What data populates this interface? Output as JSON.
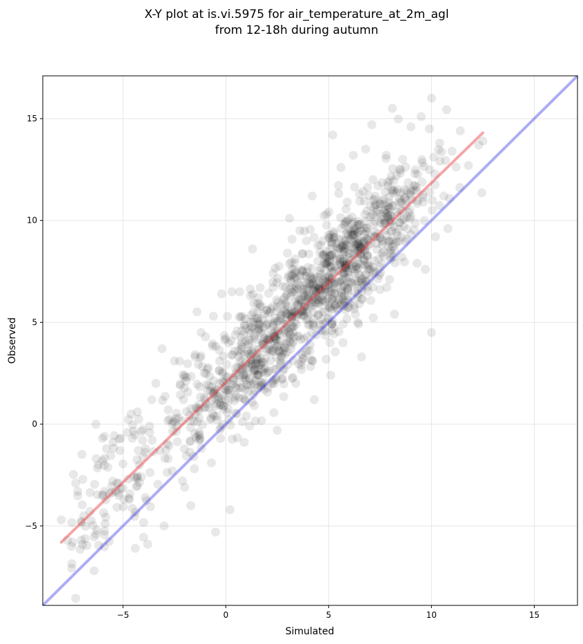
{
  "chart_data": {
    "type": "scatter",
    "title": "X-Y plot at is.vi.5975 for air_temperature_at_2m_agl",
    "subtitle": "from 12-18h during autumn",
    "xlabel": "Simulated",
    "ylabel": "Observed",
    "xlim": [
      -8.9,
      17.1
    ],
    "ylim": [
      -8.9,
      17.1
    ],
    "xticks": [
      -5,
      0,
      5,
      10,
      15
    ],
    "yticks": [
      -5,
      0,
      5,
      10,
      15
    ],
    "xtick_labels": [
      "−5",
      "0",
      "5",
      "10",
      "15"
    ],
    "ytick_labels": [
      "−5",
      "0",
      "5",
      "10",
      "15"
    ],
    "grid": true,
    "colors": {
      "points": "#000000",
      "fit_line": "#e8383b",
      "identity_line": "#3a3ae8"
    },
    "series": [
      {
        "kind": "points",
        "point_count_estimate": 1400,
        "representative_points": [
          [
            -8.0,
            -4.7
          ],
          [
            -7.7,
            -5.7
          ],
          [
            -7.5,
            -6.0
          ],
          [
            -7.3,
            -2.9
          ],
          [
            -7.2,
            -3.3
          ],
          [
            -6.9,
            -4.5
          ],
          [
            -6.3,
            -1.7
          ],
          [
            -6.2,
            -2.0
          ],
          [
            -6.0,
            -3.5
          ],
          [
            -5.9,
            -3.3
          ],
          [
            -5.8,
            -1.2
          ],
          [
            -5.9,
            -0.6
          ],
          [
            -5.5,
            -2.8
          ],
          [
            -5.3,
            -2.9
          ],
          [
            -5.1,
            -0.7
          ],
          [
            -4.7,
            -3.7
          ],
          [
            -4.6,
            0.5
          ],
          [
            -4.4,
            -6.1
          ],
          [
            -4.3,
            0.6
          ],
          [
            -4.2,
            -2.0
          ],
          [
            -3.9,
            -1.2
          ],
          [
            -3.8,
            -5.9
          ],
          [
            -3.7,
            -0.1
          ],
          [
            -3.6,
            1.2
          ],
          [
            -3.4,
            2.0
          ],
          [
            -3.2,
            -1.3
          ],
          [
            -3.1,
            3.7
          ],
          [
            -3.0,
            -5.0
          ],
          [
            -2.8,
            0.7
          ],
          [
            -2.6,
            -2.3
          ],
          [
            -2.5,
            3.1
          ],
          [
            -2.3,
            0.3
          ],
          [
            -2.2,
            1.9
          ],
          [
            -2.0,
            -3.1
          ],
          [
            -1.9,
            2.3
          ],
          [
            -1.7,
            -4.0
          ],
          [
            -1.5,
            3.3
          ],
          [
            -1.3,
            -0.8
          ],
          [
            -1.2,
            4.5
          ],
          [
            -1.0,
            1.2
          ],
          [
            -0.9,
            2.7
          ],
          [
            -0.7,
            -1.9
          ],
          [
            -0.6,
            5.3
          ],
          [
            -0.5,
            -5.3
          ],
          [
            -0.3,
            3.1
          ],
          [
            -0.2,
            6.4
          ],
          [
            -0.1,
            0.9
          ],
          [
            0.0,
            4.2
          ],
          [
            0.1,
            2.3
          ],
          [
            0.2,
            -4.2
          ],
          [
            0.3,
            6.5
          ],
          [
            0.5,
            1.4
          ],
          [
            0.6,
            3.6
          ],
          [
            0.8,
            5.3
          ],
          [
            1.0,
            0.4
          ],
          [
            1.1,
            2.8
          ],
          [
            1.2,
            6.3
          ],
          [
            1.3,
            8.6
          ],
          [
            1.5,
            3.3
          ],
          [
            1.6,
            4.7
          ],
          [
            1.7,
            1.9
          ],
          [
            1.8,
            3.9
          ],
          [
            2.0,
            5.6
          ],
          [
            2.1,
            2.6
          ],
          [
            2.3,
            7.4
          ],
          [
            2.4,
            4.2
          ],
          [
            2.5,
            -0.3
          ],
          [
            2.7,
            3.0
          ],
          [
            2.8,
            6.1
          ],
          [
            3.0,
            8.4
          ],
          [
            3.1,
            10.1
          ],
          [
            3.2,
            4.8
          ],
          [
            3.4,
            2.0
          ],
          [
            3.5,
            6.9
          ],
          [
            3.6,
            9.5
          ],
          [
            3.8,
            5.3
          ],
          [
            4.0,
            7.7
          ],
          [
            4.1,
            3.9
          ],
          [
            4.2,
            11.2
          ],
          [
            4.3,
            1.2
          ],
          [
            4.5,
            6.1
          ],
          [
            4.6,
            8.8
          ],
          [
            4.7,
            4.6
          ],
          [
            4.9,
            10.3
          ],
          [
            5.0,
            7.2
          ],
          [
            5.1,
            2.4
          ],
          [
            5.2,
            14.2
          ],
          [
            5.3,
            5.8
          ],
          [
            5.5,
            9.1
          ],
          [
            5.6,
            12.6
          ],
          [
            5.7,
            4.0
          ],
          [
            5.9,
            10.9
          ],
          [
            6.0,
            7.8
          ],
          [
            6.2,
            13.2
          ],
          [
            6.3,
            5.4
          ],
          [
            6.4,
            9.4
          ],
          [
            6.5,
            11.3
          ],
          [
            6.6,
            3.3
          ],
          [
            6.7,
            8.9
          ],
          [
            6.8,
            13.5
          ],
          [
            7.0,
            7.1
          ],
          [
            7.1,
            14.7
          ],
          [
            7.2,
            9.8
          ],
          [
            7.4,
            11.7
          ],
          [
            7.5,
            6.6
          ],
          [
            7.7,
            10.4
          ],
          [
            7.8,
            13.2
          ],
          [
            8.0,
            8.2
          ],
          [
            8.1,
            15.5
          ],
          [
            8.2,
            5.4
          ],
          [
            8.3,
            12.2
          ],
          [
            8.5,
            10.5
          ],
          [
            8.6,
            13.0
          ],
          [
            8.8,
            9.1
          ],
          [
            9.0,
            14.6
          ],
          [
            9.2,
            12.3
          ],
          [
            9.3,
            7.9
          ],
          [
            9.5,
            15.1
          ],
          [
            9.6,
            10.9
          ],
          [
            9.7,
            7.6
          ],
          [
            9.9,
            14.5
          ],
          [
            10.0,
            4.5
          ],
          [
            10.0,
            16.0
          ],
          [
            10.2,
            9.2
          ],
          [
            10.4,
            13.8
          ],
          [
            10.6,
            11.2
          ],
          [
            10.8,
            9.6
          ],
          [
            11.0,
            13.4
          ],
          [
            11.4,
            14.4
          ],
          [
            11.8,
            12.7
          ],
          [
            12.3,
            13.7
          ],
          [
            12.5,
            13.9
          ]
        ]
      },
      {
        "kind": "fit_line",
        "x": [
          -8.0,
          12.5
        ],
        "y": [
          -5.8,
          14.3
        ]
      },
      {
        "kind": "identity_line",
        "x": [
          -8.9,
          17.1
        ],
        "y": [
          -8.9,
          17.1
        ]
      }
    ]
  }
}
